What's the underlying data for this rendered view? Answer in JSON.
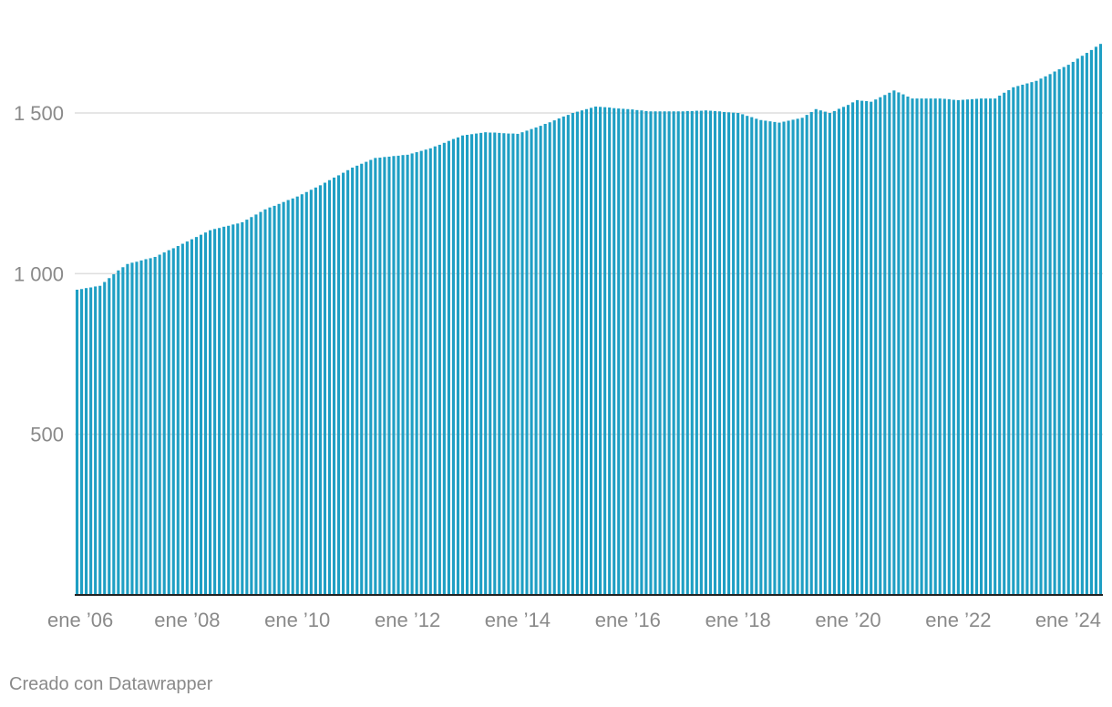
{
  "credit": "Creado con Datawrapper",
  "colors": {
    "bar": "#1f9fc4",
    "grid": "#dedede",
    "baseline": "#222222",
    "text": "#8a8a8a"
  },
  "chart_data": {
    "type": "bar",
    "title": "",
    "xlabel": "",
    "ylabel": "",
    "ylim": [
      0,
      1720
    ],
    "y_ticks": [
      500,
      1000,
      1500
    ],
    "y_tick_labels": [
      "500",
      "1 000",
      "1 500"
    ],
    "x_tick_labels": [
      "ene ’06",
      "ene ’08",
      "ene ’10",
      "ene ’12",
      "ene ’14",
      "ene ’16",
      "ene ’18",
      "ene ’20",
      "ene ’22",
      "ene ’24"
    ],
    "x_tick_dates": [
      "2006-01",
      "2008-01",
      "2010-01",
      "2012-01",
      "2014-01",
      "2016-01",
      "2018-01",
      "2020-01",
      "2022-01",
      "2024-01"
    ],
    "grid": true,
    "frequency": "monthly",
    "start": "2006-01",
    "end": "2024-08",
    "anchors": [
      [
        "2006-01",
        950
      ],
      [
        "2006-06",
        962
      ],
      [
        "2006-10",
        1010
      ],
      [
        "2006-12",
        1030
      ],
      [
        "2007-06",
        1052
      ],
      [
        "2008-01",
        1100
      ],
      [
        "2008-06",
        1135
      ],
      [
        "2009-01",
        1160
      ],
      [
        "2009-06",
        1200
      ],
      [
        "2010-01",
        1240
      ],
      [
        "2010-06",
        1275
      ],
      [
        "2011-01",
        1330
      ],
      [
        "2011-06",
        1360
      ],
      [
        "2012-01",
        1370
      ],
      [
        "2012-06",
        1390
      ],
      [
        "2013-01",
        1430
      ],
      [
        "2013-06",
        1440
      ],
      [
        "2014-01",
        1435
      ],
      [
        "2014-06",
        1460
      ],
      [
        "2015-01",
        1500
      ],
      [
        "2015-06",
        1520
      ],
      [
        "2016-01",
        1512
      ],
      [
        "2016-06",
        1505
      ],
      [
        "2017-01",
        1505
      ],
      [
        "2017-06",
        1508
      ],
      [
        "2018-01",
        1500
      ],
      [
        "2018-06",
        1478
      ],
      [
        "2018-10",
        1470
      ],
      [
        "2019-03",
        1485
      ],
      [
        "2019-06",
        1512
      ],
      [
        "2019-09",
        1500
      ],
      [
        "2020-01",
        1525
      ],
      [
        "2020-03",
        1540
      ],
      [
        "2020-06",
        1535
      ],
      [
        "2020-11",
        1570
      ],
      [
        "2021-03",
        1545
      ],
      [
        "2021-09",
        1545
      ],
      [
        "2022-01",
        1540
      ],
      [
        "2022-06",
        1545
      ],
      [
        "2022-09",
        1545
      ],
      [
        "2023-01",
        1580
      ],
      [
        "2023-06",
        1600
      ],
      [
        "2024-01",
        1650
      ],
      [
        "2024-08",
        1715
      ]
    ]
  }
}
